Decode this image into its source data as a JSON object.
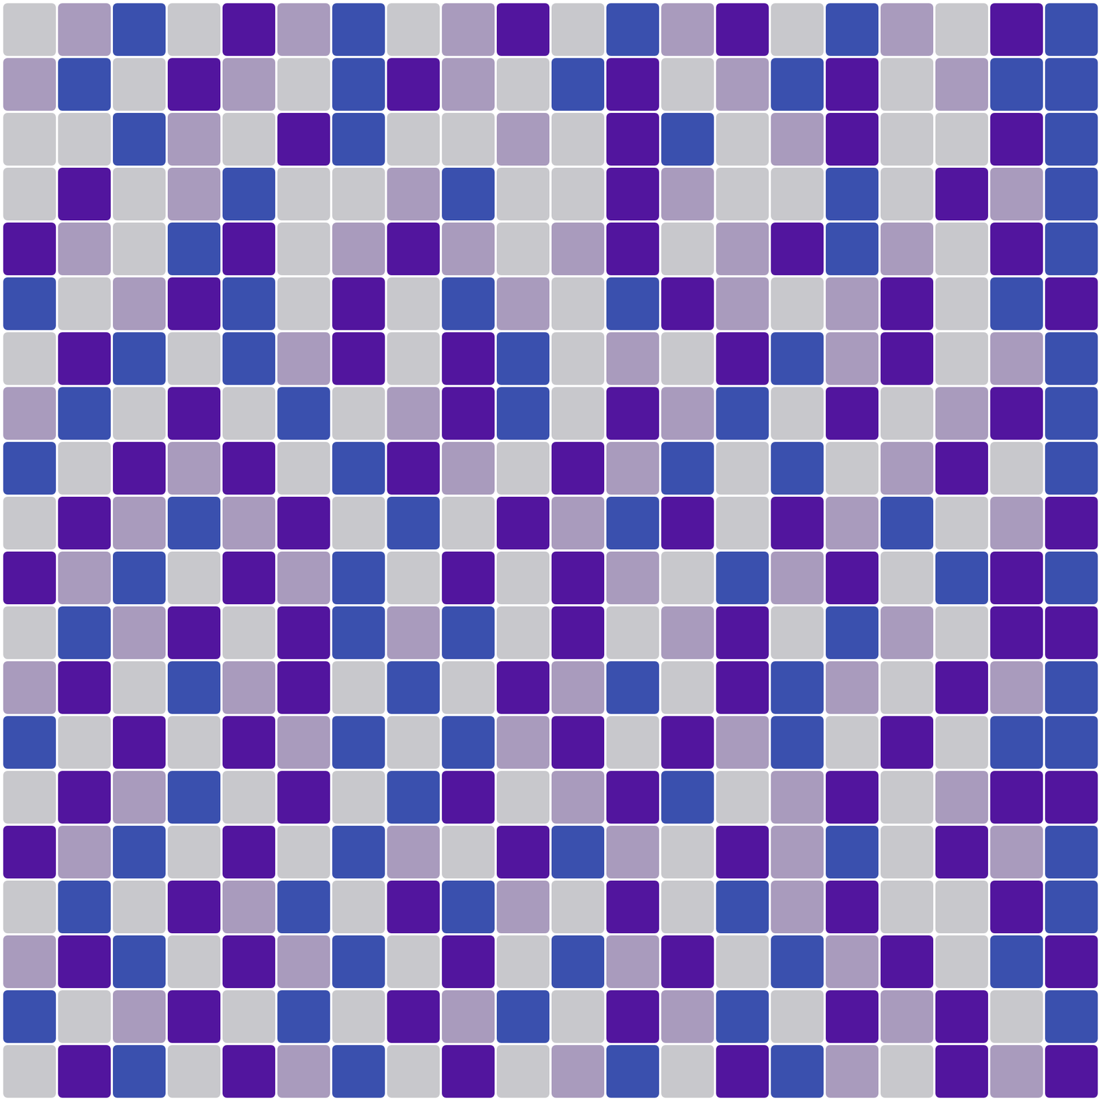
{
  "chart_data": {
    "type": "heatmap",
    "tick_labels": false,
    "color_levels": [
      0,
      1,
      2,
      3
    ],
    "colors": [
      "#c8c8cc",
      "#a99bbd",
      "#52159e",
      "#3a50ae"
    ],
    "cells": [
      [
        0,
        1,
        3,
        0,
        2,
        1,
        3,
        0,
        1,
        2,
        0,
        3,
        1,
        2,
        0,
        3,
        1,
        0,
        2,
        3
      ],
      [
        1,
        3,
        0,
        2,
        1,
        0,
        3,
        2,
        1,
        0,
        3,
        2,
        0,
        1,
        3,
        2,
        0,
        1,
        3,
        3
      ],
      [
        0,
        0,
        3,
        1,
        0,
        2,
        3,
        0,
        0,
        1,
        0,
        2,
        3,
        0,
        1,
        2,
        0,
        0,
        2,
        3
      ],
      [
        0,
        2,
        0,
        1,
        3,
        0,
        0,
        1,
        3,
        0,
        0,
        2,
        1,
        0,
        0,
        3,
        0,
        2,
        1,
        3
      ],
      [
        2,
        1,
        0,
        3,
        2,
        0,
        1,
        2,
        1,
        0,
        1,
        2,
        0,
        1,
        2,
        3,
        1,
        0,
        2,
        3
      ],
      [
        3,
        0,
        1,
        2,
        3,
        0,
        2,
        0,
        3,
        1,
        0,
        3,
        2,
        1,
        0,
        1,
        2,
        0,
        3,
        2
      ],
      [
        0,
        2,
        3,
        0,
        3,
        1,
        2,
        0,
        2,
        3,
        0,
        1,
        0,
        2,
        3,
        1,
        2,
        0,
        1,
        3
      ],
      [
        1,
        3,
        0,
        2,
        0,
        3,
        0,
        1,
        2,
        3,
        0,
        2,
        1,
        3,
        0,
        2,
        0,
        1,
        2,
        3
      ],
      [
        3,
        0,
        2,
        1,
        2,
        0,
        3,
        2,
        1,
        0,
        2,
        1,
        3,
        0,
        3,
        0,
        1,
        2,
        0,
        3
      ],
      [
        0,
        2,
        1,
        3,
        1,
        2,
        0,
        3,
        0,
        2,
        1,
        3,
        2,
        0,
        2,
        1,
        3,
        0,
        1,
        2
      ],
      [
        2,
        1,
        3,
        0,
        2,
        1,
        3,
        0,
        2,
        0,
        2,
        1,
        0,
        3,
        1,
        2,
        0,
        3,
        2,
        3
      ],
      [
        0,
        3,
        1,
        2,
        0,
        2,
        3,
        1,
        3,
        0,
        2,
        0,
        1,
        2,
        0,
        3,
        1,
        0,
        2,
        2
      ],
      [
        1,
        2,
        0,
        3,
        1,
        2,
        0,
        3,
        0,
        2,
        1,
        3,
        0,
        2,
        3,
        1,
        0,
        2,
        1,
        3
      ],
      [
        3,
        0,
        2,
        0,
        2,
        1,
        3,
        0,
        3,
        1,
        2,
        0,
        2,
        1,
        3,
        0,
        2,
        0,
        3,
        3
      ],
      [
        0,
        2,
        1,
        3,
        0,
        2,
        0,
        3,
        2,
        0,
        1,
        2,
        3,
        0,
        1,
        2,
        0,
        1,
        2,
        2
      ],
      [
        2,
        1,
        3,
        0,
        2,
        0,
        3,
        1,
        0,
        2,
        3,
        1,
        0,
        2,
        1,
        3,
        0,
        2,
        1,
        3
      ],
      [
        0,
        3,
        0,
        2,
        1,
        3,
        0,
        2,
        3,
        1,
        0,
        2,
        0,
        3,
        1,
        2,
        0,
        0,
        2,
        3
      ],
      [
        1,
        2,
        3,
        0,
        2,
        1,
        3,
        0,
        2,
        0,
        3,
        1,
        2,
        0,
        3,
        1,
        2,
        0,
        3,
        2
      ],
      [
        3,
        0,
        1,
        2,
        0,
        3,
        0,
        2,
        1,
        3,
        0,
        2,
        1,
        3,
        0,
        2,
        1,
        2,
        0,
        3
      ],
      [
        0,
        2,
        3,
        0,
        2,
        1,
        3,
        0,
        2,
        0,
        1,
        3,
        0,
        2,
        3,
        1,
        0,
        2,
        1,
        2
      ]
    ]
  }
}
